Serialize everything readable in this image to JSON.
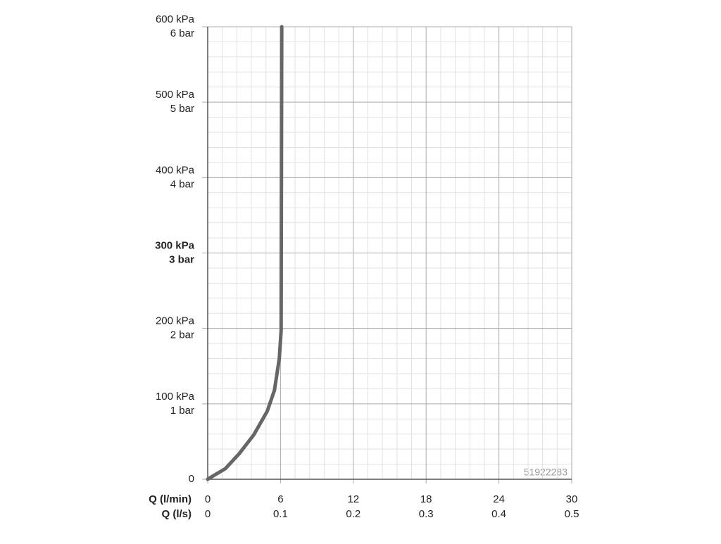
{
  "chart_data": {
    "type": "line",
    "x": [
      0,
      0.3,
      1.45,
      2.6,
      3.8,
      4.9,
      5.5,
      5.9,
      6.05,
      6.1
    ],
    "series": [
      {
        "name": "Q",
        "color": "#666666",
        "values": [
          0,
          3,
          14,
          34,
          59,
          90,
          118,
          160,
          197,
          600
        ]
      }
    ],
    "xlim": [
      0,
      30
    ],
    "xticks": [
      0,
      6,
      12,
      18,
      24,
      30
    ],
    "xlabel": "Q (l/min)",
    "x2lim": [
      0,
      0.5
    ],
    "x2ticks": [
      0,
      0.1,
      0.2,
      0.3,
      0.4,
      0.5
    ],
    "x2label": "Q (l/s)",
    "ylim": [
      0,
      600
    ],
    "yticks": [
      0,
      {
        "value": 100,
        "label": "100 kPa"
      },
      {
        "value": 200,
        "label": "200 kPa"
      },
      {
        "value": 300,
        "label": "300 kPa"
      },
      {
        "value": 400,
        "label": "400 kPa"
      },
      {
        "value": 500,
        "label": "500 kPa"
      },
      {
        "value": 600,
        "label": "600 kPa"
      }
    ],
    "ytick_bar_labels": [
      null,
      "1 bar",
      "2 bar",
      "3 bar",
      "4 bar",
      "5 bar",
      "6 bar"
    ],
    "bold_ytick_value": 300,
    "grid": true,
    "minor_subdivisions": 5,
    "annotation": "51922283"
  }
}
